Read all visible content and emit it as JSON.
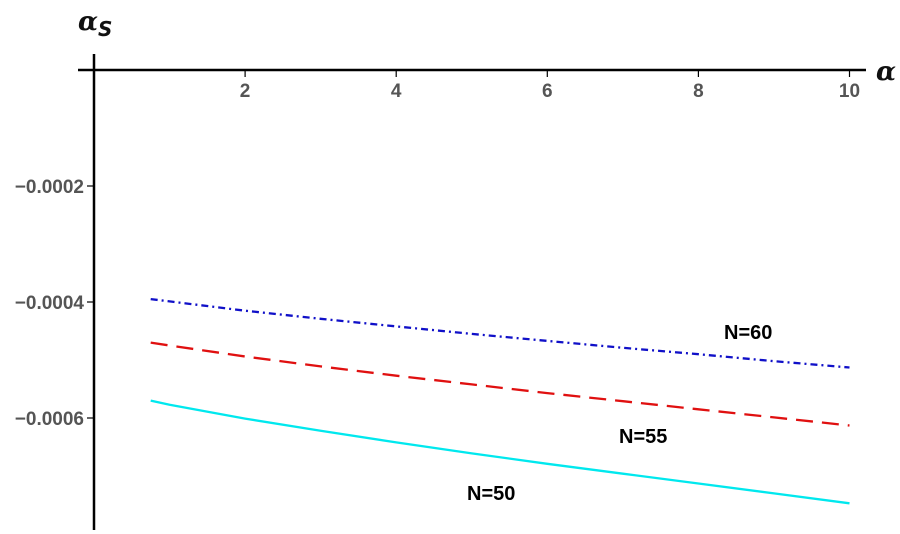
{
  "chart_data": {
    "type": "line",
    "xlabel": "α",
    "ylabel_main": "α",
    "ylabel_sub": "S",
    "xlim": [
      0,
      10.1
    ],
    "ylim": [
      -0.00078,
      0
    ],
    "x_ticks": [
      {
        "value": 2,
        "label": "2"
      },
      {
        "value": 4,
        "label": "4"
      },
      {
        "value": 6,
        "label": "6"
      },
      {
        "value": 8,
        "label": "8"
      },
      {
        "value": 10,
        "label": "10"
      }
    ],
    "y_ticks": [
      {
        "value": -0.0002,
        "label": "−0.0002"
      },
      {
        "value": -0.0004,
        "label": "−0.0004"
      },
      {
        "value": -0.0006,
        "label": "−0.0006"
      }
    ],
    "series": [
      {
        "name": "N=60",
        "color": "#1010c8",
        "style": "dashdot",
        "x": [
          0.75,
          1,
          2,
          3,
          4,
          5,
          6,
          7,
          8,
          9,
          10
        ],
        "y": [
          -0.000395,
          -0.000399,
          -0.000415,
          -0.000429,
          -0.000442,
          -0.000455,
          -0.000467,
          -0.000479,
          -0.00049,
          -0.000502,
          -0.000513
        ]
      },
      {
        "name": "N=55",
        "color": "#e01010",
        "style": "dashed",
        "x": [
          0.75,
          1,
          2,
          3,
          4,
          5,
          6,
          7,
          8,
          9,
          10
        ],
        "y": [
          -0.00047,
          -0.000475,
          -0.000494,
          -0.000511,
          -0.000527,
          -0.000542,
          -0.000557,
          -0.000571,
          -0.000585,
          -0.000599,
          -0.000613
        ]
      },
      {
        "name": "N=50",
        "color": "#00e8ee",
        "style": "solid",
        "x": [
          0.75,
          1,
          2,
          3,
          4,
          5,
          6,
          7,
          8,
          9,
          10
        ],
        "y": [
          -0.00057,
          -0.000577,
          -0.000601,
          -0.000622,
          -0.000642,
          -0.000661,
          -0.000679,
          -0.000696,
          -0.000713,
          -0.00073,
          -0.000747
        ]
      }
    ]
  }
}
